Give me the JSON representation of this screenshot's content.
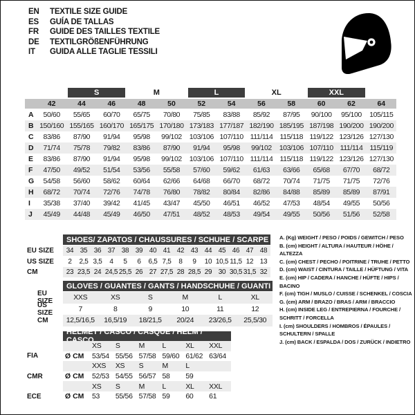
{
  "colors": {
    "dark_bar": "#3d3d3d",
    "header_band": "#c3c3c3",
    "row_stripe": "#ececec",
    "icon": "#000000"
  },
  "languages": [
    {
      "code": "EN",
      "text": "TEXTILE SIZE GUIDE"
    },
    {
      "code": "ES",
      "text": "GUÍA DE TALLAS"
    },
    {
      "code": "FR",
      "text": "GUIDE DES TAILLES TEXTILE"
    },
    {
      "code": "DE",
      "text": "TEXTILGRÖßENFÜHRUNG"
    },
    {
      "code": "IT",
      "text": "GUIDA ALLE TAGLIE TESSILI"
    }
  ],
  "main_table": {
    "size_groups": [
      {
        "label": "S",
        "dark": true,
        "start": 1
      },
      {
        "label": "M",
        "dark": false,
        "start": 3
      },
      {
        "label": "L",
        "dark": true,
        "start": 5
      },
      {
        "label": "XL",
        "dark": false,
        "start": 7
      },
      {
        "label": "XXL",
        "dark": true,
        "start": 9
      }
    ],
    "columns": [
      "42",
      "44",
      "46",
      "48",
      "50",
      "52",
      "54",
      "56",
      "58",
      "60",
      "62",
      "64"
    ],
    "rows": [
      {
        "label": "A",
        "values": [
          "50/60",
          "55/65",
          "60/70",
          "65/75",
          "70/80",
          "75/85",
          "83/88",
          "85/92",
          "87/95",
          "90/100",
          "95/100",
          "105/115"
        ]
      },
      {
        "label": "B",
        "values": [
          "150/160",
          "155/165",
          "160/170",
          "165/175",
          "170/180",
          "173/183",
          "177/187",
          "182/190",
          "185/195",
          "187/198",
          "190/200",
          "190/200"
        ]
      },
      {
        "label": "C",
        "values": [
          "83/86",
          "87/90",
          "91/94",
          "95/98",
          "99/102",
          "103/106",
          "107/110",
          "111/114",
          "115/118",
          "119/122",
          "123/126",
          "127/130"
        ]
      },
      {
        "label": "D",
        "values": [
          "71/74",
          "75/78",
          "79/82",
          "83/86",
          "87/90",
          "91/94",
          "95/98",
          "99/102",
          "103/106",
          "107/110",
          "111/114",
          "115/119"
        ]
      },
      {
        "label": "E",
        "values": [
          "83/86",
          "87/90",
          "91/94",
          "95/98",
          "99/102",
          "103/106",
          "107/110",
          "111/114",
          "115/118",
          "119/122",
          "123/126",
          "127/130"
        ]
      },
      {
        "label": "F",
        "values": [
          "47/50",
          "49/52",
          "51/54",
          "53/56",
          "55/58",
          "57/60",
          "59/62",
          "61/63",
          "63/66",
          "65/68",
          "67/70",
          "68/72"
        ]
      },
      {
        "label": "G",
        "values": [
          "54/58",
          "56/60",
          "58/62",
          "60/64",
          "62/66",
          "64/68",
          "66/70",
          "68/72",
          "70/74",
          "71/75",
          "71/75",
          "72/76"
        ]
      },
      {
        "label": "H",
        "values": [
          "68/72",
          "70/74",
          "72/76",
          "74/78",
          "76/80",
          "78/82",
          "80/84",
          "82/86",
          "84/88",
          "85/89",
          "85/89",
          "87/91"
        ]
      },
      {
        "label": "I",
        "values": [
          "35/38",
          "37/40",
          "39/42",
          "41/45",
          "43/47",
          "45/50",
          "46/51",
          "46/52",
          "47/53",
          "48/54",
          "49/55",
          "50/56"
        ]
      },
      {
        "label": "J",
        "values": [
          "45/49",
          "44/48",
          "45/49",
          "46/50",
          "47/51",
          "48/52",
          "48/53",
          "49/54",
          "49/55",
          "50/56",
          "51/56",
          "52/58"
        ]
      }
    ]
  },
  "shoes": {
    "title": "SHOES/ ZAPATOS / CHAUSSURES / SCHUHE / SCARPE",
    "rows": [
      {
        "label": "EU SIZE",
        "shaded": true,
        "values": [
          "34",
          "35",
          "36",
          "37",
          "38",
          "39",
          "40",
          "41",
          "42",
          "43",
          "44",
          "45",
          "46",
          "47",
          "48"
        ]
      },
      {
        "label": "US SIZE",
        "shaded": false,
        "values": [
          "2",
          "2,5",
          "3,5",
          "4",
          "5",
          "6",
          "6,5",
          "7,5",
          "8",
          "9",
          "10",
          "10,5",
          "11,5",
          "12",
          "13"
        ]
      },
      {
        "label": "CM",
        "shaded": true,
        "values": [
          "23",
          "23,5",
          "24",
          "24,5",
          "25,5",
          "26",
          "27",
          "27,5",
          "28",
          "28,5",
          "29",
          "30",
          "30,5",
          "31,5",
          "32"
        ]
      }
    ]
  },
  "gloves": {
    "title": "GLOVES / GUANTES / GANTS / HANDSCHUHE / GUANTI",
    "rows": [
      {
        "label": "EU SIZE",
        "shaded": true,
        "values": [
          "XXS",
          "XS",
          "S",
          "M",
          "L",
          "XL"
        ]
      },
      {
        "label": "US SIZE",
        "shaded": false,
        "values": [
          "7",
          "8",
          "9",
          "10",
          "11",
          "12"
        ]
      },
      {
        "label": "CM",
        "shaded": true,
        "values": [
          "12,5/16,5",
          "16,5/19",
          "18/21,5",
          "20/24",
          "23/26,5",
          "25,5/30"
        ]
      }
    ]
  },
  "helmet": {
    "title": "HELMET / CASCO / CASQUE / HELM / CASCO",
    "rows": [
      {
        "label": "",
        "prefix": "",
        "shaded": true,
        "values": [
          "XS",
          "S",
          "M",
          "L",
          "XL",
          "XXL"
        ]
      },
      {
        "label": "FIA",
        "prefix": "Ø CM",
        "shaded": false,
        "values": [
          "53/54",
          "55/56",
          "57/58",
          "59/60",
          "61/62",
          "63/64"
        ]
      },
      {
        "label": "",
        "prefix": "",
        "shaded": true,
        "values": [
          "XXS",
          "XS",
          "S",
          "M",
          "L",
          ""
        ]
      },
      {
        "label": "CMR",
        "prefix": "Ø CM",
        "shaded": false,
        "values": [
          "52/53",
          "54/55",
          "56/57",
          "58",
          "59",
          ""
        ]
      },
      {
        "label": "",
        "prefix": "",
        "shaded": true,
        "values": [
          "XS",
          "S",
          "M",
          "L",
          "XL",
          "XXL"
        ]
      },
      {
        "label": "ECE",
        "prefix": "Ø CM",
        "shaded": false,
        "values": [
          "53",
          "55/56",
          "57/58",
          "59",
          "60",
          "61"
        ]
      }
    ]
  },
  "legend_lines": [
    "A. (Kg) WEIGHT / PESO / POIDS / GEWITCH / PESO",
    "B. (cm) HEIGHT / ALTURA / HAUTEUR / HÖHE / ALTEZZA",
    "C. (cm) CHEST / PECHO / POITRINE / TRUHE / PETTO",
    "D. (cm) WAIST / CINTURA / TAILLE / HÜFTUNG / VITA",
    "E. (cm) HIP / CADERA / HANCHE / HÜFTE / HIPS /  BACINO",
    "F. (cm) TIGH / MUSLO / CUISSE / SCHENKEL / COSCIA",
    "G. (cm) ARM  / BRAZO / BRAS / ARM / BRACCIO",
    "H. (cm) INSIDE LEG / ENTREPIERNA / FOURCHE /",
    "SCHRITT / FORCELLA",
    "I.  (cm) SHOULDERS / HOMBROS / ÉPAULES /",
    "SCHULTERN / SPALLE",
    "J. (cm) BACK / ESPALDA / DOS / ZURÜCK / INDIETRO"
  ]
}
